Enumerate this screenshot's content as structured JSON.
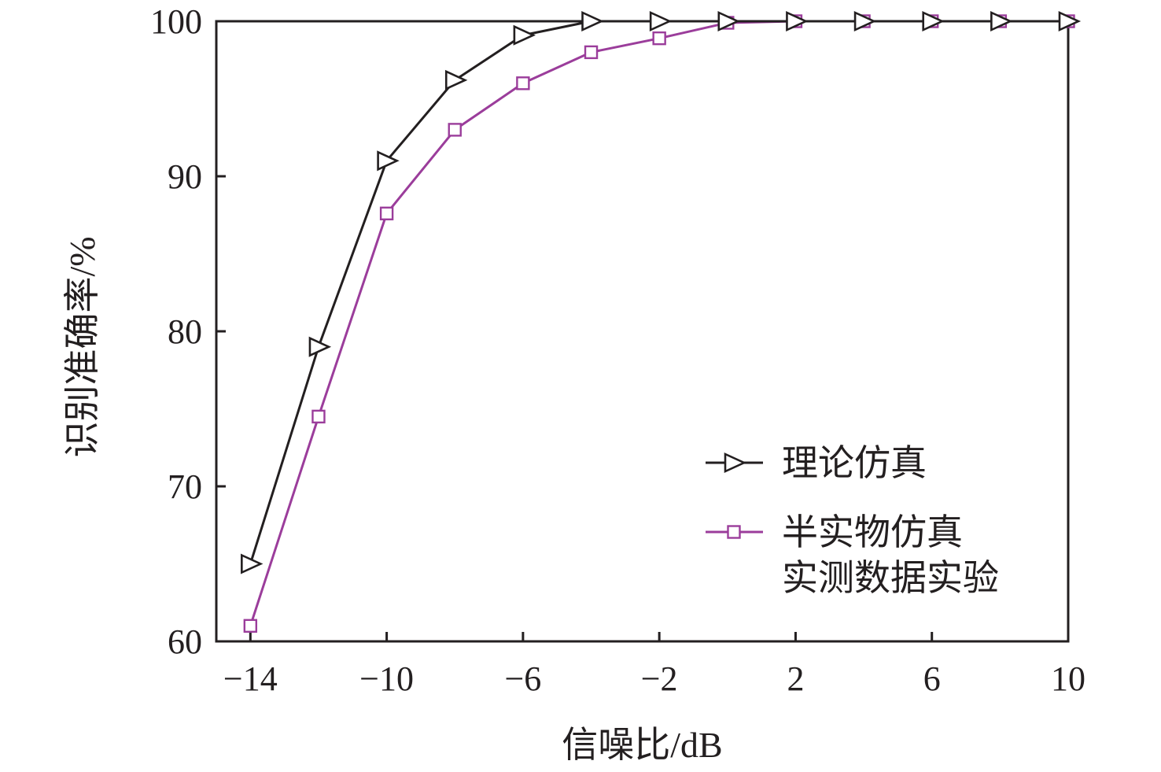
{
  "chart_data": {
    "type": "line",
    "title": "",
    "xlabel": "信噪比/dB",
    "ylabel": "识别准确率/%",
    "xlim": [
      -15,
      10
    ],
    "ylim": [
      60,
      100
    ],
    "xticks": [
      -14,
      -10,
      -6,
      -2,
      2,
      6,
      10
    ],
    "xtick_labels": [
      "−14",
      "−10",
      "−6",
      "−2",
      "2",
      "6",
      "10"
    ],
    "yticks": [
      60,
      70,
      80,
      90,
      100
    ],
    "ytick_labels": [
      "60",
      "70",
      "80",
      "90",
      "100"
    ],
    "grid": false,
    "legend_position": "lower-right",
    "x": [
      -14,
      -12,
      -10,
      -8,
      -6,
      -4,
      -2,
      0,
      2,
      4,
      6,
      8,
      10
    ],
    "series": [
      {
        "name": "理论仿真",
        "marker": "triangle-right",
        "color": "#231f20",
        "values": [
          65,
          79,
          91,
          96.2,
          99.1,
          100,
          100,
          100,
          100,
          100,
          100,
          100,
          100
        ]
      },
      {
        "name": "半实物仿真\n实测数据实验",
        "name_lines": [
          "半实物仿真",
          "实测数据实验"
        ],
        "marker": "square",
        "color": "#9b3d9b",
        "values": [
          61,
          74.5,
          87.6,
          93,
          96,
          98,
          98.9,
          99.9,
          100,
          100,
          100,
          100,
          100
        ]
      }
    ]
  }
}
